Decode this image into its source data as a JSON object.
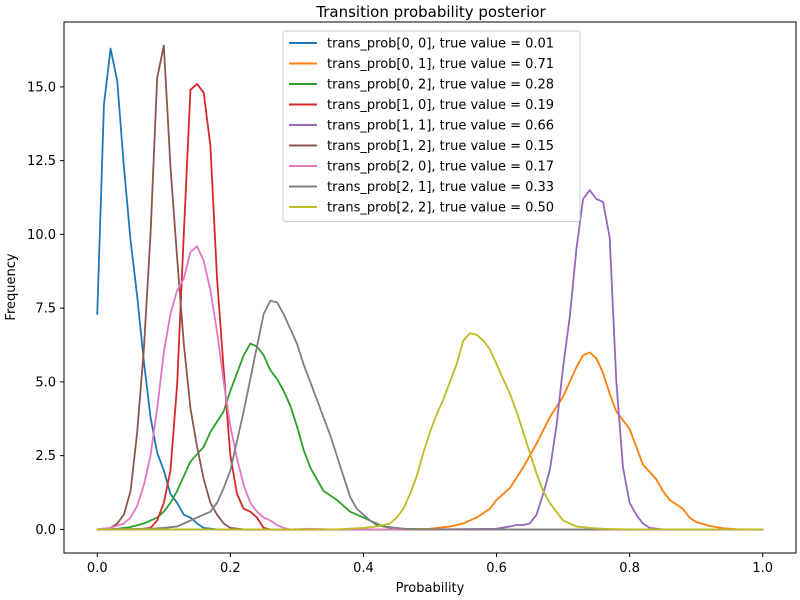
{
  "chart_data": {
    "type": "line",
    "title": "Transition probability posterior",
    "xlabel": "Probability",
    "ylabel": "Frequency",
    "xlim": [
      -0.05,
      1.05
    ],
    "ylim": [
      -0.8,
      17.2
    ],
    "x_ticks": [
      0.0,
      0.2,
      0.4,
      0.6,
      0.8,
      1.0
    ],
    "x_tick_labels": [
      "0.0",
      "0.2",
      "0.4",
      "0.6",
      "0.8",
      "1.0"
    ],
    "y_ticks": [
      0.0,
      2.5,
      5.0,
      7.5,
      10.0,
      12.5,
      15.0
    ],
    "y_tick_labels": [
      "0.0",
      "2.5",
      "5.0",
      "7.5",
      "10.0",
      "12.5",
      "15.0"
    ],
    "grid": false,
    "legend_position": "top-center",
    "series": [
      {
        "name": "trans_prob[0, 0], true value = 0.01",
        "color": "#1f77b4",
        "points": [
          [
            0.0,
            7.3
          ],
          [
            0.01,
            14.4
          ],
          [
            0.02,
            16.3
          ],
          [
            0.03,
            15.2
          ],
          [
            0.04,
            12.3
          ],
          [
            0.05,
            9.8
          ],
          [
            0.06,
            7.9
          ],
          [
            0.07,
            5.7
          ],
          [
            0.08,
            3.8
          ],
          [
            0.09,
            2.6
          ],
          [
            0.1,
            2.0
          ],
          [
            0.11,
            1.2
          ],
          [
            0.12,
            0.9
          ],
          [
            0.13,
            0.5
          ],
          [
            0.14,
            0.4
          ],
          [
            0.15,
            0.2
          ],
          [
            0.16,
            0.05
          ],
          [
            0.18,
            0.0
          ],
          [
            0.25,
            0.0
          ],
          [
            0.5,
            0.0
          ],
          [
            0.75,
            0.0
          ],
          [
            1.0,
            0.0
          ]
        ]
      },
      {
        "name": "trans_prob[0, 1], true value = 0.71",
        "color": "#ff7f0e",
        "points": [
          [
            0.0,
            0.0
          ],
          [
            0.45,
            0.0
          ],
          [
            0.5,
            0.02
          ],
          [
            0.53,
            0.1
          ],
          [
            0.55,
            0.2
          ],
          [
            0.57,
            0.4
          ],
          [
            0.59,
            0.7
          ],
          [
            0.6,
            1.0
          ],
          [
            0.62,
            1.4
          ],
          [
            0.64,
            2.1
          ],
          [
            0.66,
            2.9
          ],
          [
            0.68,
            3.8
          ],
          [
            0.7,
            4.5
          ],
          [
            0.71,
            5.0
          ],
          [
            0.72,
            5.5
          ],
          [
            0.73,
            5.9
          ],
          [
            0.74,
            6.0
          ],
          [
            0.75,
            5.8
          ],
          [
            0.76,
            5.3
          ],
          [
            0.77,
            4.6
          ],
          [
            0.78,
            4.0
          ],
          [
            0.8,
            3.4
          ],
          [
            0.81,
            2.8
          ],
          [
            0.82,
            2.2
          ],
          [
            0.84,
            1.7
          ],
          [
            0.85,
            1.3
          ],
          [
            0.86,
            1.0
          ],
          [
            0.88,
            0.7
          ],
          [
            0.89,
            0.4
          ],
          [
            0.9,
            0.25
          ],
          [
            0.92,
            0.12
          ],
          [
            0.94,
            0.04
          ],
          [
            0.96,
            0.01
          ],
          [
            0.98,
            0.0
          ],
          [
            1.0,
            0.0
          ]
        ]
      },
      {
        "name": "trans_prob[0, 2], true value = 0.28",
        "color": "#2ca02c",
        "points": [
          [
            0.0,
            0.0
          ],
          [
            0.03,
            0.02
          ],
          [
            0.05,
            0.08
          ],
          [
            0.07,
            0.2
          ],
          [
            0.09,
            0.4
          ],
          [
            0.1,
            0.6
          ],
          [
            0.11,
            0.9
          ],
          [
            0.12,
            1.3
          ],
          [
            0.13,
            1.8
          ],
          [
            0.14,
            2.3
          ],
          [
            0.16,
            2.8
          ],
          [
            0.17,
            3.3
          ],
          [
            0.19,
            4.0
          ],
          [
            0.2,
            4.7
          ],
          [
            0.21,
            5.3
          ],
          [
            0.22,
            5.9
          ],
          [
            0.23,
            6.3
          ],
          [
            0.24,
            6.2
          ],
          [
            0.25,
            5.9
          ],
          [
            0.26,
            5.4
          ],
          [
            0.27,
            5.1
          ],
          [
            0.28,
            4.7
          ],
          [
            0.29,
            4.2
          ],
          [
            0.3,
            3.5
          ],
          [
            0.31,
            2.7
          ],
          [
            0.32,
            2.1
          ],
          [
            0.33,
            1.7
          ],
          [
            0.34,
            1.3
          ],
          [
            0.36,
            1.0
          ],
          [
            0.37,
            0.8
          ],
          [
            0.38,
            0.6
          ],
          [
            0.4,
            0.4
          ],
          [
            0.41,
            0.3
          ],
          [
            0.42,
            0.15
          ],
          [
            0.44,
            0.05
          ],
          [
            0.46,
            0.02
          ],
          [
            0.5,
            0.0
          ],
          [
            0.75,
            0.0
          ],
          [
            1.0,
            0.0
          ]
        ]
      },
      {
        "name": "trans_prob[1, 0], true value = 0.19",
        "color": "#d62728",
        "points": [
          [
            0.0,
            0.0
          ],
          [
            0.06,
            0.0
          ],
          [
            0.08,
            0.05
          ],
          [
            0.09,
            0.3
          ],
          [
            0.1,
            0.9
          ],
          [
            0.11,
            2.0
          ],
          [
            0.12,
            4.9
          ],
          [
            0.13,
            10.0
          ],
          [
            0.14,
            14.9
          ],
          [
            0.15,
            15.1
          ],
          [
            0.16,
            14.8
          ],
          [
            0.17,
            13.0
          ],
          [
            0.18,
            8.5
          ],
          [
            0.19,
            5.4
          ],
          [
            0.2,
            2.5
          ],
          [
            0.21,
            1.2
          ],
          [
            0.22,
            0.7
          ],
          [
            0.23,
            0.6
          ],
          [
            0.24,
            0.4
          ],
          [
            0.25,
            0.05
          ],
          [
            0.26,
            0.0
          ],
          [
            0.5,
            0.0
          ],
          [
            0.75,
            0.0
          ],
          [
            1.0,
            0.0
          ]
        ]
      },
      {
        "name": "trans_prob[1, 1], true value = 0.66",
        "color": "#9467bd",
        "points": [
          [
            0.0,
            0.0
          ],
          [
            0.5,
            0.0
          ],
          [
            0.6,
            0.02
          ],
          [
            0.62,
            0.1
          ],
          [
            0.63,
            0.15
          ],
          [
            0.64,
            0.15
          ],
          [
            0.65,
            0.2
          ],
          [
            0.66,
            0.5
          ],
          [
            0.67,
            1.2
          ],
          [
            0.68,
            2.0
          ],
          [
            0.69,
            3.5
          ],
          [
            0.7,
            5.5
          ],
          [
            0.71,
            7.2
          ],
          [
            0.72,
            9.5
          ],
          [
            0.73,
            11.2
          ],
          [
            0.74,
            11.5
          ],
          [
            0.75,
            11.2
          ],
          [
            0.76,
            11.1
          ],
          [
            0.77,
            9.9
          ],
          [
            0.78,
            5.0
          ],
          [
            0.79,
            2.1
          ],
          [
            0.8,
            0.9
          ],
          [
            0.81,
            0.5
          ],
          [
            0.82,
            0.2
          ],
          [
            0.83,
            0.05
          ],
          [
            0.85,
            0.0
          ],
          [
            1.0,
            0.0
          ]
        ]
      },
      {
        "name": "trans_prob[1, 2], true value = 0.15",
        "color": "#8c564b",
        "points": [
          [
            0.0,
            0.0
          ],
          [
            0.02,
            0.05
          ],
          [
            0.03,
            0.2
          ],
          [
            0.04,
            0.5
          ],
          [
            0.05,
            1.3
          ],
          [
            0.06,
            3.3
          ],
          [
            0.07,
            6.1
          ],
          [
            0.08,
            10.0
          ],
          [
            0.09,
            15.3
          ],
          [
            0.1,
            16.4
          ],
          [
            0.11,
            12.3
          ],
          [
            0.12,
            9.2
          ],
          [
            0.13,
            6.3
          ],
          [
            0.14,
            4.1
          ],
          [
            0.15,
            2.8
          ],
          [
            0.16,
            1.7
          ],
          [
            0.17,
            0.9
          ],
          [
            0.18,
            0.5
          ],
          [
            0.19,
            0.2
          ],
          [
            0.2,
            0.05
          ],
          [
            0.22,
            0.0
          ],
          [
            0.5,
            0.0
          ],
          [
            0.75,
            0.0
          ],
          [
            1.0,
            0.0
          ]
        ]
      },
      {
        "name": "trans_prob[2, 0], true value = 0.17",
        "color": "#e377c2",
        "points": [
          [
            0.0,
            0.0
          ],
          [
            0.02,
            0.05
          ],
          [
            0.04,
            0.2
          ],
          [
            0.05,
            0.4
          ],
          [
            0.06,
            0.8
          ],
          [
            0.07,
            1.5
          ],
          [
            0.08,
            2.5
          ],
          [
            0.09,
            4.1
          ],
          [
            0.1,
            6.0
          ],
          [
            0.11,
            7.3
          ],
          [
            0.12,
            8.1
          ],
          [
            0.13,
            8.5
          ],
          [
            0.14,
            9.4
          ],
          [
            0.15,
            9.6
          ],
          [
            0.16,
            9.1
          ],
          [
            0.17,
            8.1
          ],
          [
            0.18,
            6.7
          ],
          [
            0.19,
            5.0
          ],
          [
            0.2,
            3.5
          ],
          [
            0.21,
            2.4
          ],
          [
            0.22,
            1.5
          ],
          [
            0.23,
            0.9
          ],
          [
            0.24,
            0.6
          ],
          [
            0.25,
            0.4
          ],
          [
            0.26,
            0.3
          ],
          [
            0.27,
            0.15
          ],
          [
            0.28,
            0.05
          ],
          [
            0.29,
            0.0
          ],
          [
            0.32,
            0.02
          ],
          [
            0.35,
            0.0
          ],
          [
            1.0,
            0.0
          ]
        ]
      },
      {
        "name": "trans_prob[2, 1], true value = 0.33",
        "color": "#7f7f7f",
        "points": [
          [
            0.0,
            0.0
          ],
          [
            0.08,
            0.02
          ],
          [
            0.1,
            0.05
          ],
          [
            0.12,
            0.1
          ],
          [
            0.13,
            0.2
          ],
          [
            0.15,
            0.4
          ],
          [
            0.17,
            0.6
          ],
          [
            0.18,
            0.9
          ],
          [
            0.19,
            1.4
          ],
          [
            0.2,
            2.0
          ],
          [
            0.21,
            3.0
          ],
          [
            0.22,
            4.0
          ],
          [
            0.23,
            5.1
          ],
          [
            0.24,
            6.2
          ],
          [
            0.25,
            7.3
          ],
          [
            0.26,
            7.75
          ],
          [
            0.27,
            7.7
          ],
          [
            0.28,
            7.3
          ],
          [
            0.29,
            6.8
          ],
          [
            0.3,
            6.3
          ],
          [
            0.31,
            5.6
          ],
          [
            0.32,
            5.0
          ],
          [
            0.33,
            4.4
          ],
          [
            0.34,
            3.8
          ],
          [
            0.35,
            3.2
          ],
          [
            0.36,
            2.5
          ],
          [
            0.37,
            1.8
          ],
          [
            0.38,
            1.1
          ],
          [
            0.39,
            0.7
          ],
          [
            0.4,
            0.5
          ],
          [
            0.41,
            0.3
          ],
          [
            0.42,
            0.2
          ],
          [
            0.43,
            0.1
          ],
          [
            0.45,
            0.05
          ],
          [
            0.47,
            0.0
          ],
          [
            0.75,
            0.0
          ],
          [
            1.0,
            0.0
          ]
        ]
      },
      {
        "name": "trans_prob[2, 2], true value = 0.50",
        "color": "#bcbd22",
        "points": [
          [
            0.0,
            0.0
          ],
          [
            0.36,
            0.0
          ],
          [
            0.4,
            0.05
          ],
          [
            0.42,
            0.1
          ],
          [
            0.44,
            0.2
          ],
          [
            0.45,
            0.4
          ],
          [
            0.46,
            0.7
          ],
          [
            0.47,
            1.2
          ],
          [
            0.48,
            1.8
          ],
          [
            0.49,
            2.6
          ],
          [
            0.5,
            3.3
          ],
          [
            0.51,
            3.9
          ],
          [
            0.52,
            4.4
          ],
          [
            0.53,
            5.0
          ],
          [
            0.54,
            5.6
          ],
          [
            0.55,
            6.4
          ],
          [
            0.56,
            6.65
          ],
          [
            0.57,
            6.6
          ],
          [
            0.58,
            6.4
          ],
          [
            0.59,
            6.1
          ],
          [
            0.6,
            5.6
          ],
          [
            0.61,
            5.1
          ],
          [
            0.62,
            4.6
          ],
          [
            0.63,
            4.0
          ],
          [
            0.64,
            3.3
          ],
          [
            0.65,
            2.6
          ],
          [
            0.66,
            1.9
          ],
          [
            0.67,
            1.3
          ],
          [
            0.68,
            0.9
          ],
          [
            0.69,
            0.6
          ],
          [
            0.7,
            0.3
          ],
          [
            0.72,
            0.1
          ],
          [
            0.74,
            0.05
          ],
          [
            0.76,
            0.02
          ],
          [
            0.8,
            0.0
          ],
          [
            1.0,
            0.0
          ]
        ]
      }
    ]
  }
}
